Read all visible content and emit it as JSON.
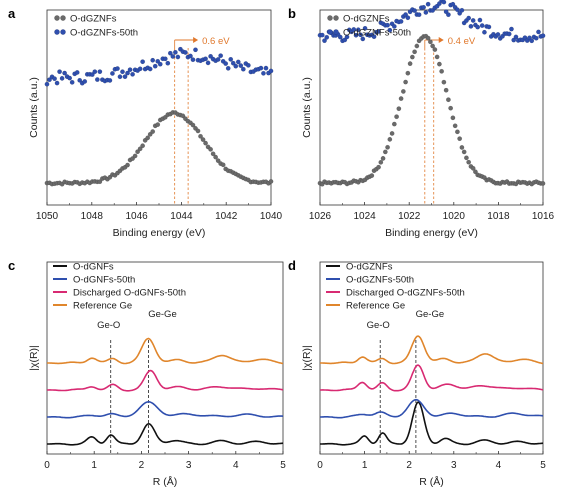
{
  "chart_data": [
    {
      "panel": "a",
      "type": "scatter",
      "xlabel": "Binding energy (eV)",
      "ylabel": "Counts (a.u.)",
      "xlim": [
        1050,
        1040
      ],
      "x_ticks": [
        "1050",
        "1048",
        "1046",
        "1044",
        "1042",
        "1040"
      ],
      "legend_position": "top-left",
      "annotation": "0.6 eV",
      "peak_lines": [
        1044.3,
        1043.7
      ],
      "series": [
        {
          "name": "O-dGZNFs",
          "color": "#6a6a6a",
          "peak": 1044.3,
          "width": 1.3,
          "height": 0.5,
          "base": 0.0
        },
        {
          "name": "O-dGZNFs-50th",
          "color": "#2f4fae",
          "peak": 1043.7,
          "width": 1.8,
          "height": 0.17,
          "base": 0.75
        }
      ]
    },
    {
      "panel": "b",
      "type": "scatter",
      "xlabel": "Binding energy (eV)",
      "ylabel": "Counts (a.u.)",
      "xlim": [
        1026,
        1016
      ],
      "x_ticks": [
        "1026",
        "1024",
        "1022",
        "1020",
        "1018",
        "1016"
      ],
      "legend_position": "top-left",
      "annotation": "0.4 eV",
      "peak_lines": [
        1021.3,
        1020.9
      ],
      "series": [
        {
          "name": "O-dGZNFs",
          "color": "#6a6a6a",
          "peak": 1021.3,
          "width": 1.0,
          "height": 1.05,
          "base": 0.0
        },
        {
          "name": "O-dGZNFs-50th",
          "color": "#2f4fae",
          "peak": 1020.9,
          "width": 1.4,
          "height": 0.22,
          "base": 1.05
        }
      ]
    },
    {
      "panel": "c",
      "type": "line",
      "xlabel": "R (Å)",
      "ylabel": "|χ(R)|",
      "xlim": [
        0,
        5
      ],
      "x_ticks": [
        "0",
        "1",
        "2",
        "3",
        "4",
        "5"
      ],
      "legend_position": "top-left",
      "ref_lines": [
        {
          "label": "Ge-O",
          "x": 1.35
        },
        {
          "label": "Ge-Ge",
          "x": 2.15
        }
      ],
      "series": [
        {
          "name": "O-dGNFs",
          "color": "#111111",
          "offset": 0,
          "peaks": [
            [
              0.95,
              0.12,
              0.1
            ],
            [
              1.35,
              0.17,
              0.09
            ],
            [
              2.15,
              0.36,
              0.13
            ],
            [
              2.7,
              0.07,
              0.15
            ],
            [
              3.7,
              0.05,
              0.2
            ],
            [
              4.5,
              0.04,
              0.2
            ]
          ]
        },
        {
          "name": "O-dGNFs-50th",
          "color": "#2f4fae",
          "offset": 1,
          "peaks": [
            [
              1.0,
              0.03,
              0.15
            ],
            [
              1.35,
              0.05,
              0.12
            ],
            [
              2.15,
              0.26,
              0.2
            ],
            [
              3.0,
              0.05,
              0.3
            ],
            [
              4.2,
              0.04,
              0.3
            ]
          ]
        },
        {
          "name": "Discharged O-dGNFs-50th",
          "color": "#d82a72",
          "offset": 2,
          "peaks": [
            [
              0.95,
              0.07,
              0.1
            ],
            [
              1.4,
              0.09,
              0.1
            ],
            [
              2.2,
              0.35,
              0.13
            ],
            [
              2.8,
              0.05,
              0.2
            ],
            [
              3.7,
              0.06,
              0.25
            ],
            [
              4.5,
              0.03,
              0.2
            ]
          ]
        },
        {
          "name": "Reference Ge",
          "color": "#e0862c",
          "offset": 3,
          "peaks": [
            [
              0.95,
              0.1,
              0.1
            ],
            [
              1.4,
              0.08,
              0.1
            ],
            [
              2.15,
              0.45,
              0.14
            ],
            [
              2.8,
              0.06,
              0.15
            ],
            [
              3.7,
              0.15,
              0.18
            ],
            [
              4.5,
              0.07,
              0.2
            ]
          ]
        }
      ]
    },
    {
      "panel": "d",
      "type": "line",
      "xlabel": "R (Å)",
      "ylabel": "|χ(R)|",
      "xlim": [
        0,
        5
      ],
      "x_ticks": [
        "0",
        "1",
        "2",
        "3",
        "4",
        "5"
      ],
      "legend_position": "top-left",
      "ref_lines": [
        {
          "label": "Ge-O",
          "x": 1.35
        },
        {
          "label": "Ge-Ge",
          "x": 2.15
        }
      ],
      "series": [
        {
          "name": "O-dGZNFs",
          "color": "#111111",
          "offset": 0,
          "peaks": [
            [
              1.0,
              0.14,
              0.09
            ],
            [
              1.4,
              0.2,
              0.09
            ],
            [
              2.2,
              0.75,
              0.13
            ],
            [
              2.8,
              0.1,
              0.12
            ],
            [
              3.7,
              0.06,
              0.2
            ],
            [
              4.5,
              0.04,
              0.2
            ]
          ]
        },
        {
          "name": "O-dGZNFs-50th",
          "color": "#2f4fae",
          "offset": 1,
          "peaks": [
            [
              1.0,
              0.05,
              0.15
            ],
            [
              1.35,
              0.08,
              0.12
            ],
            [
              2.15,
              0.3,
              0.18
            ],
            [
              3.0,
              0.06,
              0.25
            ],
            [
              4.4,
              0.06,
              0.3
            ]
          ]
        },
        {
          "name": "Discharged O-dGZNFs-50th",
          "color": "#d82a72",
          "offset": 2,
          "peaks": [
            [
              0.95,
              0.15,
              0.1
            ],
            [
              1.4,
              0.12,
              0.1
            ],
            [
              2.2,
              0.45,
              0.13
            ],
            [
              2.9,
              0.1,
              0.2
            ],
            [
              3.7,
              0.08,
              0.25
            ],
            [
              4.5,
              0.04,
              0.2
            ]
          ]
        },
        {
          "name": "Reference Ge",
          "color": "#e0862c",
          "offset": 3,
          "peaks": [
            [
              0.95,
              0.12,
              0.1
            ],
            [
              1.4,
              0.08,
              0.1
            ],
            [
              2.2,
              0.5,
              0.14
            ],
            [
              2.8,
              0.08,
              0.15
            ],
            [
              3.7,
              0.18,
              0.18
            ],
            [
              4.5,
              0.07,
              0.2
            ]
          ]
        }
      ]
    }
  ]
}
